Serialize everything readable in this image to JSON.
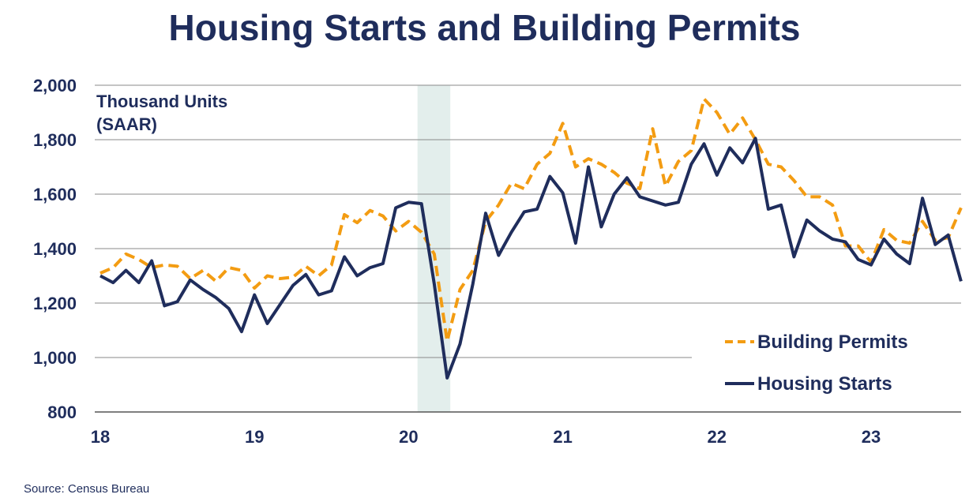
{
  "title": "Housing Starts and Building Permits",
  "source": "Source:  Census Bureau",
  "chart_data": {
    "type": "line",
    "title": "Housing Starts and Building Permits",
    "unit_label_line1": "Thousand Units",
    "unit_label_line2": "(SAAR)",
    "ylim": [
      800,
      2000
    ],
    "yticks": [
      800,
      1000,
      1200,
      1400,
      1600,
      1800,
      2000
    ],
    "ytick_labels": [
      "800",
      "1,000",
      "1,200",
      "1,400",
      "1,600",
      "1,800",
      "2,000"
    ],
    "xtick_labels": [
      "18",
      "19",
      "20",
      "21",
      "22",
      "23"
    ],
    "grid": true,
    "legend_position": "bottom-right",
    "recession_shading": {
      "start": "2020-02",
      "end": "2020-04",
      "color": "#e3eeec"
    },
    "x_start": "2018-01",
    "x": [
      "2018-01",
      "2018-02",
      "2018-03",
      "2018-04",
      "2018-05",
      "2018-06",
      "2018-07",
      "2018-08",
      "2018-09",
      "2018-10",
      "2018-11",
      "2018-12",
      "2019-01",
      "2019-02",
      "2019-03",
      "2019-04",
      "2019-05",
      "2019-06",
      "2019-07",
      "2019-08",
      "2019-09",
      "2019-10",
      "2019-11",
      "2019-12",
      "2020-01",
      "2020-02",
      "2020-03",
      "2020-04",
      "2020-05",
      "2020-06",
      "2020-07",
      "2020-08",
      "2020-09",
      "2020-10",
      "2020-11",
      "2020-12",
      "2021-01",
      "2021-02",
      "2021-03",
      "2021-04",
      "2021-05",
      "2021-06",
      "2021-07",
      "2021-08",
      "2021-09",
      "2021-10",
      "2021-11",
      "2021-12",
      "2022-01",
      "2022-02",
      "2022-03",
      "2022-04",
      "2022-05",
      "2022-06",
      "2022-07",
      "2022-08",
      "2022-09",
      "2022-10",
      "2022-11",
      "2022-12",
      "2023-01",
      "2023-02",
      "2023-03",
      "2023-04",
      "2023-05",
      "2023-06",
      "2023-07",
      "2023-08"
    ],
    "series": [
      {
        "name": "Building Permits",
        "color": "#f39c12",
        "style": "dashed",
        "values": [
          1310,
          1330,
          1380,
          1360,
          1330,
          1340,
          1335,
          1290,
          1320,
          1280,
          1330,
          1320,
          1255,
          1300,
          1290,
          1295,
          1335,
          1300,
          1340,
          1525,
          1495,
          1540,
          1520,
          1465,
          1500,
          1460,
          1380,
          1060,
          1250,
          1320,
          1500,
          1560,
          1640,
          1620,
          1710,
          1750,
          1860,
          1700,
          1730,
          1710,
          1680,
          1640,
          1620,
          1840,
          1630,
          1720,
          1760,
          1950,
          1900,
          1820,
          1880,
          1800,
          1710,
          1700,
          1650,
          1590,
          1590,
          1560,
          1410,
          1410,
          1350,
          1470,
          1430,
          1420,
          1500,
          1430,
          1440,
          1550
        ]
      },
      {
        "name": "Housing Starts",
        "color": "#1f2d5c",
        "style": "solid",
        "values": [
          1300,
          1275,
          1320,
          1275,
          1355,
          1190,
          1205,
          1285,
          1250,
          1220,
          1180,
          1095,
          1230,
          1125,
          1195,
          1265,
          1305,
          1230,
          1245,
          1370,
          1300,
          1330,
          1345,
          1550,
          1570,
          1565,
          1270,
          925,
          1050,
          1270,
          1530,
          1375,
          1460,
          1535,
          1545,
          1665,
          1605,
          1420,
          1700,
          1480,
          1600,
          1660,
          1590,
          1575,
          1560,
          1570,
          1710,
          1785,
          1670,
          1770,
          1715,
          1805,
          1545,
          1560,
          1370,
          1505,
          1465,
          1435,
          1425,
          1360,
          1340,
          1435,
          1380,
          1345,
          1585,
          1415,
          1450,
          1280
        ]
      }
    ]
  }
}
